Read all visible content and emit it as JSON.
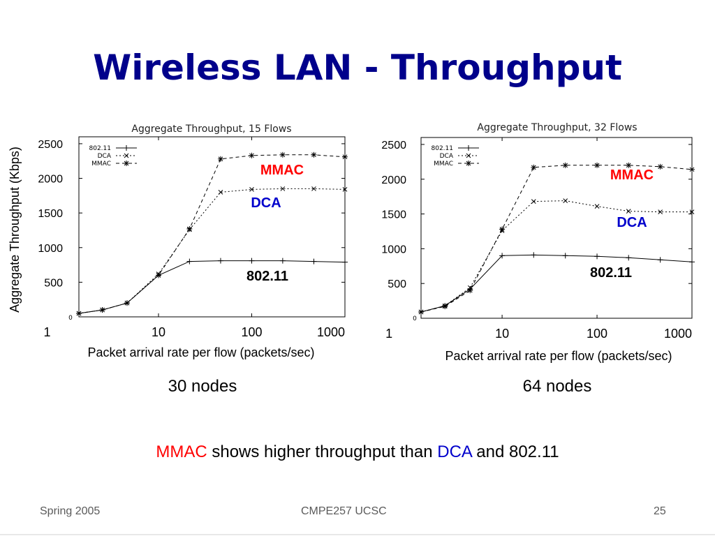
{
  "slide": {
    "title": "Wireless LAN - Throughput",
    "summary": {
      "part1": "MMAC",
      "part2": " shows higher throughput than ",
      "part3": "DCA",
      "part4": " and 802.11"
    },
    "footer": {
      "left": "Spring 2005",
      "center": "CMPE257   UCSC",
      "page": "25"
    }
  },
  "colors": {
    "title": "#00008b",
    "mmac": "#ff0000",
    "dca": "#0000cc"
  },
  "chart_data": [
    {
      "type": "line",
      "title": "Aggregate Throughput, 15 Flows",
      "ylabel": "Aggregate Throughput (Kbps)",
      "xlabel": "Packet arrival rate per flow (packets/sec)",
      "caption": "30 nodes",
      "xscale": "log",
      "xlim": [
        1.4,
        1000
      ],
      "ylim": [
        0,
        2600
      ],
      "xticks": [
        "1",
        "10",
        "100",
        "1000"
      ],
      "xtick_values": [
        1,
        10,
        100,
        1000
      ],
      "yticks": [
        "500",
        "1000",
        "1500",
        "2000",
        "2500"
      ],
      "ytick_values": [
        500,
        1000,
        1500,
        2000,
        2500
      ],
      "origin_label": "0",
      "legend_position": "top-left",
      "legend": [
        "802.11",
        "DCA",
        "MMAC"
      ],
      "series": [
        {
          "name": "802.11",
          "marker": "plus",
          "dash": "",
          "x": [
            1.4,
            2.5,
            4.6,
            10,
            21.5,
            46.4,
            100,
            215,
            464,
            1000
          ],
          "y": [
            50,
            100,
            200,
            600,
            800,
            810,
            810,
            810,
            800,
            790
          ]
        },
        {
          "name": "DCA",
          "marker": "x",
          "dash": "2,3",
          "x": [
            1.4,
            2.5,
            4.6,
            10,
            21.5,
            46.4,
            100,
            215,
            464,
            1000
          ],
          "y": [
            50,
            100,
            200,
            620,
            1260,
            1800,
            1840,
            1850,
            1850,
            1840
          ]
        },
        {
          "name": "MMAC",
          "marker": "star",
          "dash": "5,4",
          "x": [
            1.4,
            2.5,
            4.6,
            10,
            21.5,
            46.4,
            100,
            215,
            464,
            1000
          ],
          "y": [
            50,
            100,
            200,
            600,
            1270,
            2280,
            2330,
            2340,
            2340,
            2310
          ]
        }
      ],
      "annotations": [
        {
          "text": "MMAC",
          "color": "#ff0000"
        },
        {
          "text": "DCA",
          "color": "#0000cc"
        },
        {
          "text": "802.11",
          "color": "#000000"
        }
      ]
    },
    {
      "type": "line",
      "title": "Aggregate Throughput, 32 Flows",
      "xlabel": "Packet arrival rate per flow (packets/sec)",
      "caption": "64 nodes",
      "xscale": "log",
      "xlim": [
        1.4,
        1000
      ],
      "ylim": [
        0,
        2600
      ],
      "xticks": [
        "1",
        "10",
        "100",
        "1000"
      ],
      "xtick_values": [
        1,
        10,
        100,
        1000
      ],
      "yticks": [
        "500",
        "1000",
        "1500",
        "2000",
        "2500"
      ],
      "ytick_values": [
        500,
        1000,
        1500,
        2000,
        2500
      ],
      "origin_label": "0",
      "legend_position": "top-left",
      "legend": [
        "802.11",
        "DCA",
        "MMAC"
      ],
      "series": [
        {
          "name": "802.11",
          "marker": "plus",
          "dash": "",
          "x": [
            1.4,
            2.5,
            4.6,
            10,
            21.5,
            46.4,
            100,
            215,
            464,
            1000
          ],
          "y": [
            90,
            180,
            420,
            900,
            910,
            900,
            890,
            870,
            840,
            810
          ]
        },
        {
          "name": "DCA",
          "marker": "x",
          "dash": "2,3",
          "x": [
            1.4,
            2.5,
            4.6,
            10,
            21.5,
            46.4,
            100,
            215,
            464,
            1000
          ],
          "y": [
            90,
            180,
            440,
            1260,
            1680,
            1690,
            1610,
            1540,
            1530,
            1530
          ]
        },
        {
          "name": "MMAC",
          "marker": "star",
          "dash": "5,4",
          "x": [
            1.4,
            2.5,
            4.6,
            10,
            21.5,
            46.4,
            100,
            215,
            464,
            1000
          ],
          "y": [
            90,
            170,
            400,
            1280,
            2170,
            2200,
            2200,
            2200,
            2180,
            2140
          ]
        }
      ],
      "annotations": [
        {
          "text": "MMAC",
          "color": "#ff0000"
        },
        {
          "text": "DCA",
          "color": "#0000cc"
        },
        {
          "text": "802.11",
          "color": "#000000"
        }
      ]
    }
  ]
}
